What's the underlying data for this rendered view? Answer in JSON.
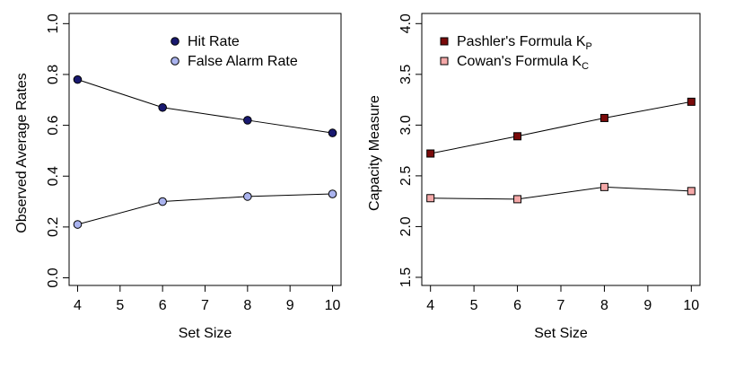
{
  "chart_data": [
    {
      "type": "line",
      "xlabel": "Set Size",
      "ylabel": "Observed Average Rates",
      "xlim": [
        4,
        10
      ],
      "ylim": [
        0.0,
        1.0
      ],
      "x_ticks": [
        "4",
        "5",
        "6",
        "7",
        "8",
        "9",
        "10"
      ],
      "y_ticks": [
        "0.0",
        "0.2",
        "0.4",
        "0.6",
        "0.8",
        "1.0"
      ],
      "grid": false,
      "legend_position": "top-right",
      "x": [
        4,
        6,
        8,
        10
      ],
      "series": [
        {
          "name": "Hit Rate",
          "values": [
            0.78,
            0.67,
            0.62,
            0.57
          ],
          "color": "#191970",
          "marker": "circle"
        },
        {
          "name": "False Alarm Rate",
          "values": [
            0.21,
            0.3,
            0.32,
            0.33
          ],
          "color": "#aab3ee",
          "marker": "circle"
        }
      ]
    },
    {
      "type": "line",
      "xlabel": "Set Size",
      "ylabel": "Capacity Measure",
      "xlim": [
        4,
        10
      ],
      "ylim": [
        1.5,
        4.0
      ],
      "x_ticks": [
        "4",
        "5",
        "6",
        "7",
        "8",
        "9",
        "10"
      ],
      "y_ticks": [
        "1.5",
        "2.0",
        "2.5",
        "3.0",
        "3.5",
        "4.0"
      ],
      "grid": false,
      "legend_position": "top-right",
      "x": [
        4,
        6,
        8,
        10
      ],
      "series": [
        {
          "name": "Pashler's Formula K",
          "subscript": "P",
          "values": [
            2.72,
            2.89,
            3.07,
            3.23
          ],
          "color": "#7a0a0a",
          "marker": "square"
        },
        {
          "name": "Cowan's Formula K",
          "subscript": "C",
          "values": [
            2.28,
            2.27,
            2.39,
            2.35
          ],
          "color": "#f4a8a8",
          "marker": "square"
        }
      ]
    }
  ]
}
